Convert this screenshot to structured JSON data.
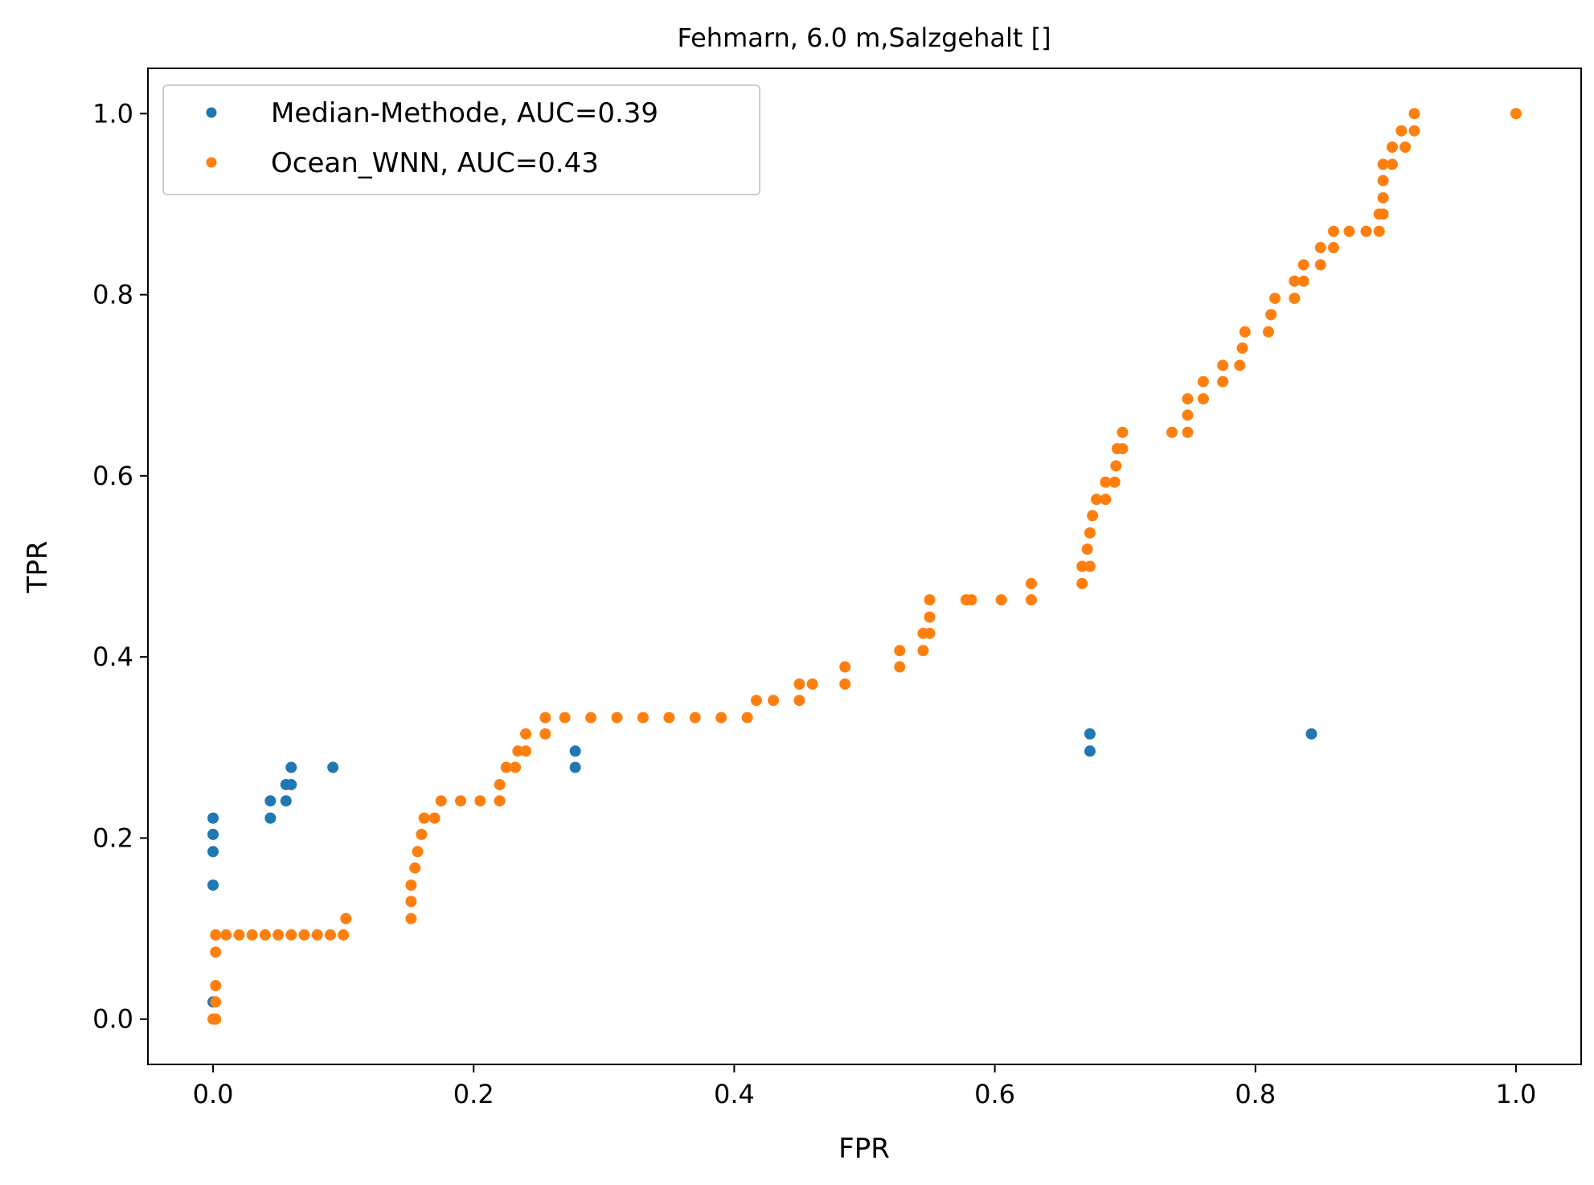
{
  "chart_data": {
    "type": "scatter",
    "title": "Fehmarn, 6.0 m,Salzgehalt []",
    "xlabel": "FPR",
    "ylabel": "TPR",
    "xlim": [
      -0.05,
      1.05
    ],
    "ylim": [
      -0.05,
      1.05
    ],
    "x_ticks": [
      0.0,
      0.2,
      0.4,
      0.6,
      0.8,
      1.0
    ],
    "y_ticks": [
      0.0,
      0.2,
      0.4,
      0.6,
      0.8,
      1.0
    ],
    "x_tick_labels": [
      "0.0",
      "0.2",
      "0.4",
      "0.6",
      "0.8",
      "1.0"
    ],
    "y_tick_labels": [
      "0.0",
      "0.2",
      "0.4",
      "0.6",
      "0.8",
      "1.0"
    ],
    "grid": false,
    "legend_position": "top-left",
    "series": [
      {
        "name": "Median-Methode, AUC=0.39",
        "color": "#1f77b4",
        "points": [
          [
            0.0,
            0.019
          ],
          [
            0.0,
            0.148
          ],
          [
            0.0,
            0.185
          ],
          [
            0.0,
            0.204
          ],
          [
            0.0,
            0.222
          ],
          [
            0.044,
            0.222
          ],
          [
            0.044,
            0.241
          ],
          [
            0.056,
            0.241
          ],
          [
            0.056,
            0.259
          ],
          [
            0.06,
            0.259
          ],
          [
            0.06,
            0.278
          ],
          [
            0.092,
            0.278
          ],
          [
            0.278,
            0.278
          ],
          [
            0.278,
            0.296
          ],
          [
            0.673,
            0.296
          ],
          [
            0.673,
            0.315
          ],
          [
            0.843,
            0.315
          ]
        ]
      },
      {
        "name": "Ocean_WNN, AUC=0.43",
        "color": "#ff7f0e",
        "points": [
          [
            0.0,
            0.0
          ],
          [
            0.002,
            0.0
          ],
          [
            0.002,
            0.019
          ],
          [
            0.002,
            0.037
          ],
          [
            0.002,
            0.074
          ],
          [
            0.002,
            0.093
          ],
          [
            0.01,
            0.093
          ],
          [
            0.02,
            0.093
          ],
          [
            0.03,
            0.093
          ],
          [
            0.04,
            0.093
          ],
          [
            0.05,
            0.093
          ],
          [
            0.06,
            0.093
          ],
          [
            0.07,
            0.093
          ],
          [
            0.08,
            0.093
          ],
          [
            0.09,
            0.093
          ],
          [
            0.1,
            0.093
          ],
          [
            0.102,
            0.111
          ],
          [
            0.152,
            0.111
          ],
          [
            0.152,
            0.13
          ],
          [
            0.152,
            0.148
          ],
          [
            0.155,
            0.167
          ],
          [
            0.157,
            0.185
          ],
          [
            0.16,
            0.204
          ],
          [
            0.162,
            0.222
          ],
          [
            0.17,
            0.222
          ],
          [
            0.175,
            0.241
          ],
          [
            0.19,
            0.241
          ],
          [
            0.205,
            0.241
          ],
          [
            0.22,
            0.241
          ],
          [
            0.22,
            0.259
          ],
          [
            0.225,
            0.278
          ],
          [
            0.232,
            0.278
          ],
          [
            0.234,
            0.296
          ],
          [
            0.24,
            0.296
          ],
          [
            0.24,
            0.315
          ],
          [
            0.255,
            0.315
          ],
          [
            0.255,
            0.333
          ],
          [
            0.27,
            0.333
          ],
          [
            0.29,
            0.333
          ],
          [
            0.31,
            0.333
          ],
          [
            0.33,
            0.333
          ],
          [
            0.35,
            0.333
          ],
          [
            0.37,
            0.333
          ],
          [
            0.39,
            0.333
          ],
          [
            0.41,
            0.333
          ],
          [
            0.417,
            0.352
          ],
          [
            0.43,
            0.352
          ],
          [
            0.45,
            0.352
          ],
          [
            0.45,
            0.37
          ],
          [
            0.46,
            0.37
          ],
          [
            0.485,
            0.37
          ],
          [
            0.485,
            0.389
          ],
          [
            0.527,
            0.389
          ],
          [
            0.527,
            0.407
          ],
          [
            0.545,
            0.407
          ],
          [
            0.545,
            0.426
          ],
          [
            0.55,
            0.426
          ],
          [
            0.55,
            0.444
          ],
          [
            0.55,
            0.463
          ],
          [
            0.578,
            0.463
          ],
          [
            0.582,
            0.463
          ],
          [
            0.605,
            0.463
          ],
          [
            0.628,
            0.463
          ],
          [
            0.628,
            0.481
          ],
          [
            0.667,
            0.481
          ],
          [
            0.667,
            0.5
          ],
          [
            0.673,
            0.5
          ],
          [
            0.671,
            0.519
          ],
          [
            0.673,
            0.537
          ],
          [
            0.675,
            0.556
          ],
          [
            0.678,
            0.574
          ],
          [
            0.685,
            0.574
          ],
          [
            0.685,
            0.593
          ],
          [
            0.692,
            0.593
          ],
          [
            0.693,
            0.611
          ],
          [
            0.694,
            0.63
          ],
          [
            0.698,
            0.63
          ],
          [
            0.698,
            0.648
          ],
          [
            0.736,
            0.648
          ],
          [
            0.748,
            0.648
          ],
          [
            0.748,
            0.667
          ],
          [
            0.748,
            0.685
          ],
          [
            0.76,
            0.685
          ],
          [
            0.76,
            0.704
          ],
          [
            0.775,
            0.704
          ],
          [
            0.775,
            0.722
          ],
          [
            0.788,
            0.722
          ],
          [
            0.79,
            0.741
          ],
          [
            0.792,
            0.759
          ],
          [
            0.81,
            0.759
          ],
          [
            0.812,
            0.778
          ],
          [
            0.815,
            0.796
          ],
          [
            0.83,
            0.796
          ],
          [
            0.83,
            0.815
          ],
          [
            0.837,
            0.815
          ],
          [
            0.837,
            0.833
          ],
          [
            0.85,
            0.833
          ],
          [
            0.85,
            0.852
          ],
          [
            0.86,
            0.852
          ],
          [
            0.86,
            0.87
          ],
          [
            0.872,
            0.87
          ],
          [
            0.885,
            0.87
          ],
          [
            0.895,
            0.87
          ],
          [
            0.895,
            0.889
          ],
          [
            0.898,
            0.889
          ],
          [
            0.898,
            0.907
          ],
          [
            0.898,
            0.926
          ],
          [
            0.898,
            0.944
          ],
          [
            0.905,
            0.944
          ],
          [
            0.905,
            0.963
          ],
          [
            0.915,
            0.963
          ],
          [
            0.912,
            0.981
          ],
          [
            0.922,
            0.981
          ],
          [
            0.922,
            1.0
          ],
          [
            1.0,
            1.0
          ]
        ]
      }
    ]
  }
}
